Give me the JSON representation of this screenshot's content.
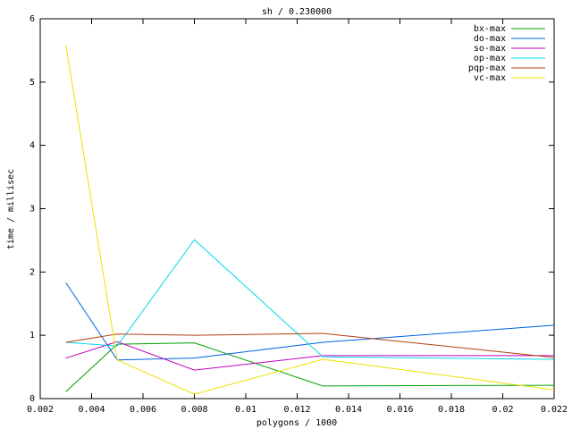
{
  "chart_data": {
    "type": "line",
    "title": "sh / 0.230000",
    "x_label": "polygons / 1000",
    "y_label": "time / millisec",
    "x": [
      0.003,
      0.005,
      0.008,
      0.013,
      0.022
    ],
    "series": [
      {
        "name": "bx-max",
        "color": "#00a000",
        "values": [
          0.11,
          0.86,
          0.88,
          0.2,
          0.21
        ]
      },
      {
        "name": "do-max",
        "color": "#0060e0",
        "values": [
          1.83,
          0.61,
          0.64,
          0.89,
          1.16
        ]
      },
      {
        "name": "so-max",
        "color": "#c000c0",
        "values": [
          0.64,
          0.9,
          0.45,
          0.68,
          0.68
        ]
      },
      {
        "name": "op-max",
        "color": "#00d8e8",
        "values": [
          0.89,
          0.83,
          2.51,
          0.66,
          0.62
        ]
      },
      {
        "name": "pqp-max",
        "color": "#b04010",
        "values": [
          0.89,
          1.02,
          1.0,
          1.03,
          0.65
        ]
      },
      {
        "name": "vc-max",
        "color": "#f0e000",
        "values": [
          5.58,
          0.61,
          0.07,
          0.62,
          0.14
        ]
      }
    ],
    "xlim": [
      0.002,
      0.022
    ],
    "xticks": [
      0.002,
      0.004,
      0.006,
      0.008,
      0.01,
      0.012,
      0.014,
      0.016,
      0.018,
      0.02,
      0.022
    ],
    "ylim": [
      0,
      6
    ],
    "yticks": [
      0,
      1,
      2,
      3,
      4,
      5,
      6
    ],
    "legend": "top-right"
  }
}
